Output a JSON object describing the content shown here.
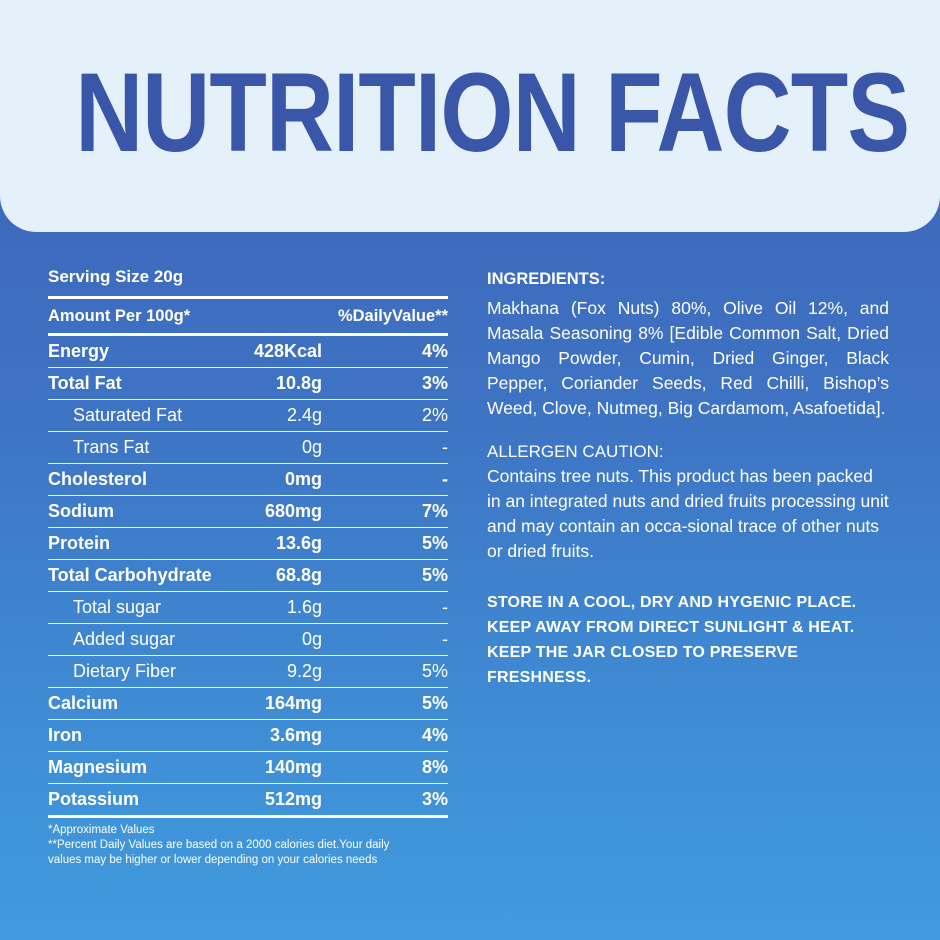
{
  "title": "NUTRITION FACTS",
  "serving_size": "Serving Size 20g",
  "table": {
    "header": {
      "left": "Amount Per 100g*",
      "right": "%DailyValue**"
    },
    "rows": [
      {
        "name": "Energy",
        "amount": "428Kcal",
        "dv": "4%",
        "style": "bold"
      },
      {
        "name": "Total Fat",
        "amount": "10.8g",
        "dv": "3%",
        "style": "bold"
      },
      {
        "name": "Saturated Fat",
        "amount": "2.4g",
        "dv": "2%",
        "style": "sub"
      },
      {
        "name": "Trans Fat",
        "amount": "0g",
        "dv": "-",
        "style": "sub"
      },
      {
        "name": "Cholesterol",
        "amount": "0mg",
        "dv": "-",
        "style": "bold"
      },
      {
        "name": "Sodium",
        "amount": "680mg",
        "dv": "7%",
        "style": "bold"
      },
      {
        "name": "Protein",
        "amount": "13.6g",
        "dv": "5%",
        "style": "bold"
      },
      {
        "name": "Total Carbohydrate",
        "amount": "68.8g",
        "dv": "5%",
        "style": "bold"
      },
      {
        "name": "Total sugar",
        "amount": "1.6g",
        "dv": "-",
        "style": "sub"
      },
      {
        "name": "Added sugar",
        "amount": "0g",
        "dv": "-",
        "style": "sub"
      },
      {
        "name": "Dietary Fiber",
        "amount": "9.2g",
        "dv": "5%",
        "style": "sub"
      },
      {
        "name": "Calcium",
        "amount": "164mg",
        "dv": "5%",
        "style": "bold"
      },
      {
        "name": "Iron",
        "amount": "3.6mg",
        "dv": "4%",
        "style": "bold"
      },
      {
        "name": "Magnesium",
        "amount": "140mg",
        "dv": "8%",
        "style": "bold"
      },
      {
        "name": "Potassium",
        "amount": "512mg",
        "dv": "3%",
        "style": "bold"
      }
    ]
  },
  "notes": {
    "approx": "*Approximate Values",
    "daily_line1": "**Percent Daily Values are based on a 2000 calories diet.Your daily",
    "daily_line2": "values may be higher or lower depending on your calories needs"
  },
  "ingredients": {
    "title": "INGREDIENTS:",
    "body": "Makhana (Fox Nuts) 80%, Olive Oil 12%, and Masala Seasoning 8% [Edible Common Salt, Dried Mango Powder, Cumin, Dried Ginger, Black Pepper, Coriander Seeds, Red Chilli, Bishop’s Weed, Clove, Nutmeg, Big Cardamom, Asafoetida]."
  },
  "allergen": {
    "title": "ALLERGEN CAUTION:",
    "body": "Contains tree nuts. This product has been packed in an integrated nuts and dried fruits processing unit and may contain an occa-sional trace of other nuts or dried fruits."
  },
  "storage": "STORE IN A COOL, DRY AND HYGENIC PLACE. KEEP AWAY FROM DIRECT SUNLIGHT & HEAT. KEEP THE JAR CLOSED TO PRESERVE FRESHNESS.",
  "colors": {
    "title_text": "#3a56a8",
    "header_bg": "#e4f1fb",
    "bg_top": "#3f5fb6",
    "bg_bottom": "#409bdc"
  }
}
